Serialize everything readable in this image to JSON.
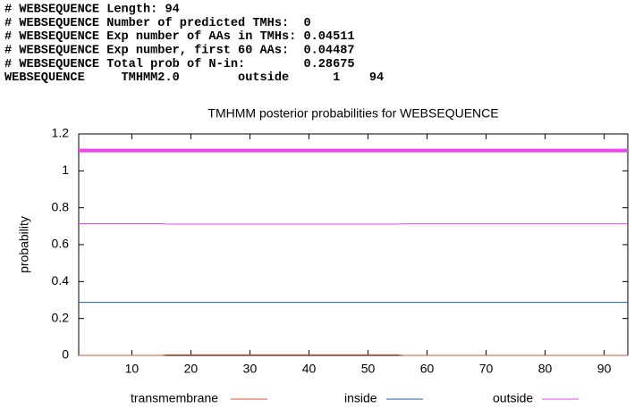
{
  "header_lines": [
    "# WEBSEQUENCE Length: 94",
    "# WEBSEQUENCE Number of predicted TMHs:  0",
    "# WEBSEQUENCE Exp number of AAs in TMHs: 0.04511",
    "# WEBSEQUENCE Exp number, first 60 AAs:  0.04487",
    "# WEBSEQUENCE Total prob of N-in:        0.28675",
    "WEBSEQUENCE     TMHMM2.0        outside      1    94"
  ],
  "chart_data": {
    "type": "line",
    "title": "TMHMM posterior probabilities for WEBSEQUENCE",
    "y_label": "probability",
    "x": [
      1,
      15,
      16,
      55,
      56,
      94
    ],
    "series": [
      {
        "name": "transmembrane",
        "color": "#d8553a",
        "values": [
          0,
          0,
          0.003,
          0.003,
          0,
          0
        ]
      },
      {
        "name": "inside",
        "color": "#1f5fa8",
        "values": [
          0.287,
          0.287,
          0.287,
          0.287,
          0.287,
          0.287
        ]
      },
      {
        "name": "outside",
        "color": "#ee44ee",
        "values": [
          0.714,
          0.714,
          0.711,
          0.711,
          0.713,
          0.713
        ]
      }
    ],
    "regions": [
      {
        "start": 1,
        "end": 94,
        "y": 1.11,
        "color": "#ee44ee"
      }
    ],
    "xlim": [
      1,
      94
    ],
    "xticks": [
      10,
      20,
      30,
      40,
      50,
      60,
      70,
      80,
      90
    ],
    "ylim": [
      0,
      1.2
    ],
    "yticks": [
      0,
      0.2,
      0.4,
      0.6,
      0.8,
      1,
      1.2
    ],
    "grid": false
  }
}
